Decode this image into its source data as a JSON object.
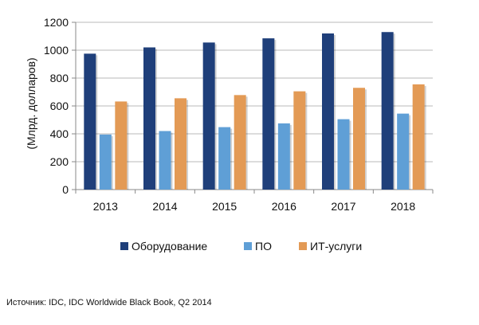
{
  "chart_data": {
    "type": "bar",
    "ylabel": "(Млрд. долларов)",
    "ylim": [
      0,
      1200
    ],
    "yticks": [
      0,
      200,
      400,
      600,
      800,
      1000,
      1200
    ],
    "categories": [
      "2013",
      "2014",
      "2015",
      "2016",
      "2017",
      "2018"
    ],
    "series": [
      {
        "name": "Оборудование",
        "color": "#1f3f7a",
        "values": [
          975,
          1020,
          1055,
          1085,
          1120,
          1130
        ]
      },
      {
        "name": "ПО",
        "color": "#5f9fd6",
        "values": [
          395,
          420,
          448,
          475,
          505,
          545
        ]
      },
      {
        "name": "ИТ-услуги",
        "color": "#e39a55",
        "values": [
          632,
          655,
          678,
          705,
          730,
          755
        ]
      }
    ],
    "grid": "horizontal",
    "legend_position": "bottom"
  },
  "source": "Источник: IDC, IDC Worldwide Black Book, Q2 2014"
}
